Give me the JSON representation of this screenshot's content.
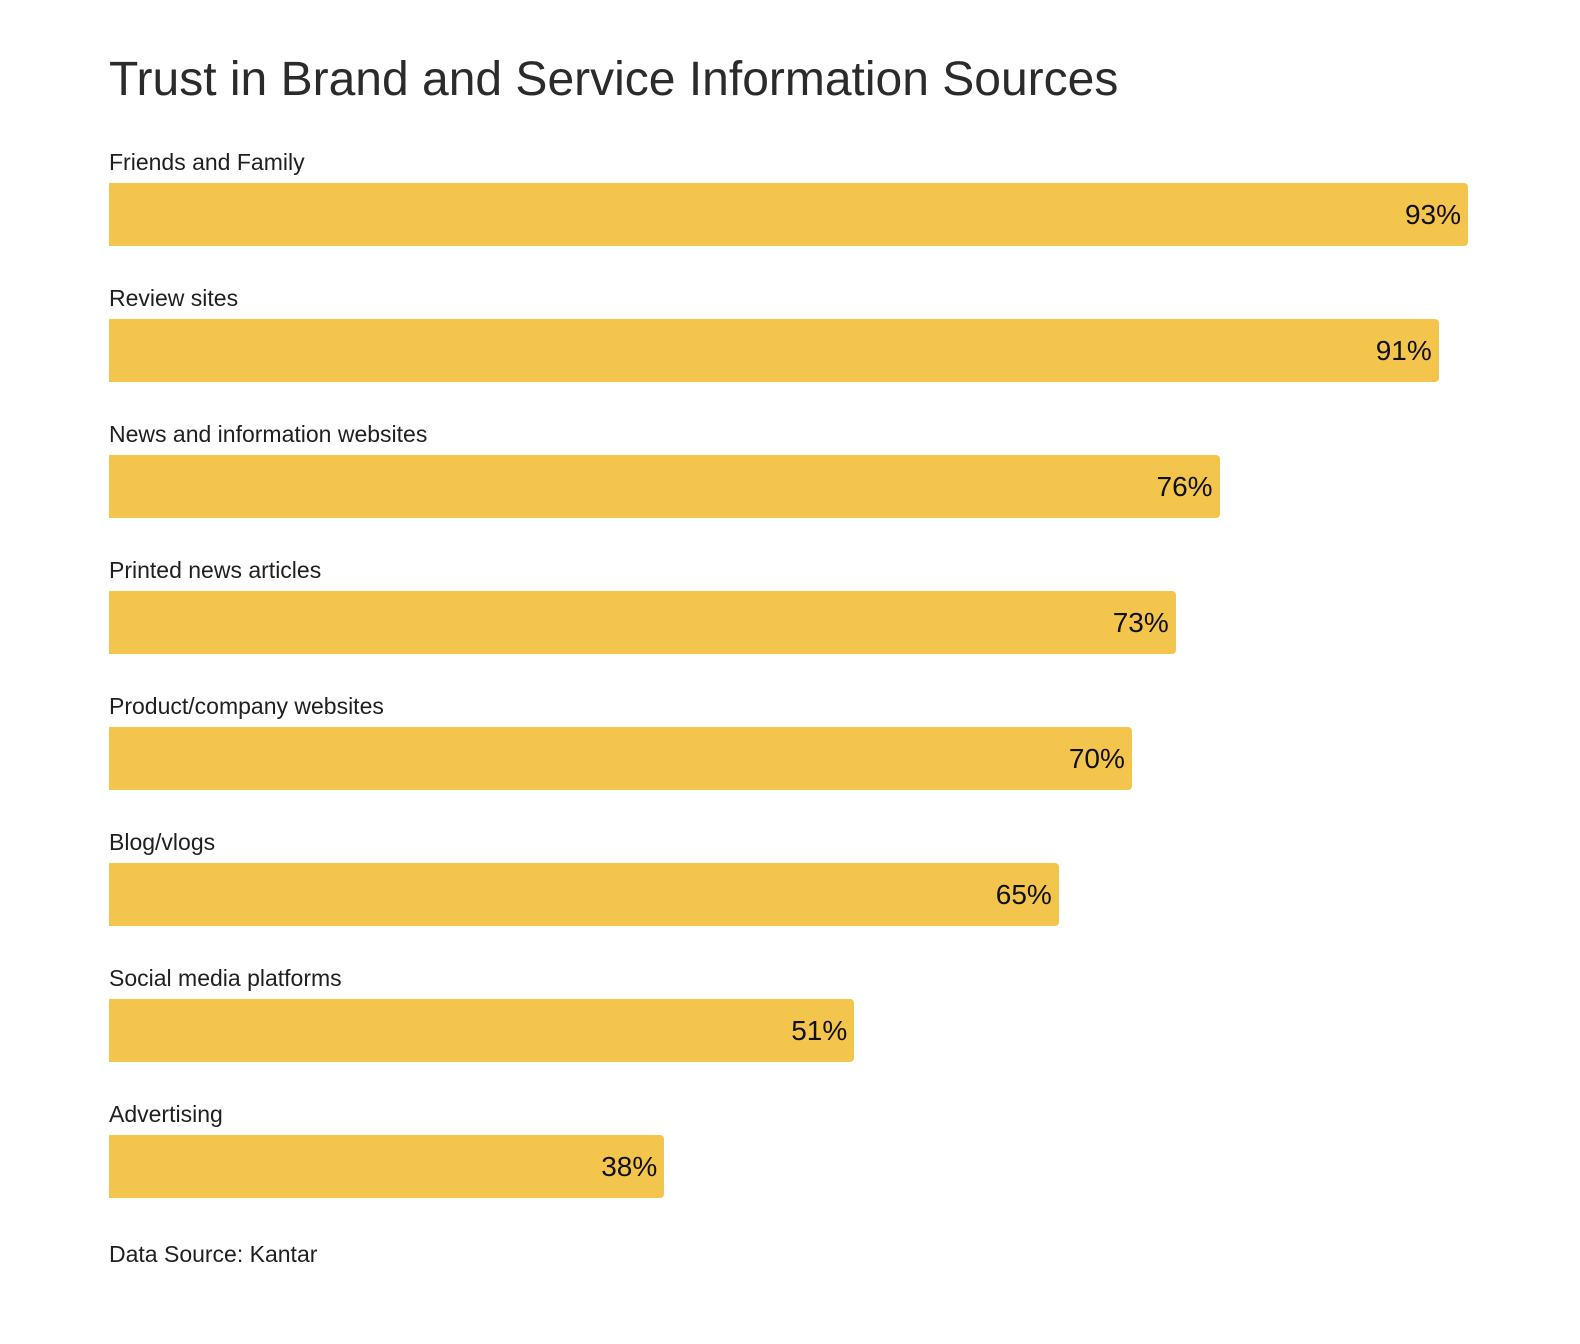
{
  "chart_data": {
    "type": "bar",
    "orientation": "horizontal",
    "title": "Trust in Brand and Service Information Sources",
    "categories": [
      "Friends and Family",
      "Review sites",
      "News and information websites",
      "Printed news articles",
      "Product/company websites",
      "Blog/vlogs",
      "Social media platforms",
      "Advertising"
    ],
    "values": [
      93,
      91,
      76,
      73,
      70,
      65,
      51,
      38
    ],
    "value_labels": [
      "93%",
      "91%",
      "76%",
      "73%",
      "70%",
      "65%",
      "51%",
      "38%"
    ],
    "unit": "%",
    "xlim": [
      0,
      93
    ],
    "grid": false,
    "legend": "none",
    "bar_color": "#f4c54d",
    "source": "Data Source: Kantar"
  }
}
